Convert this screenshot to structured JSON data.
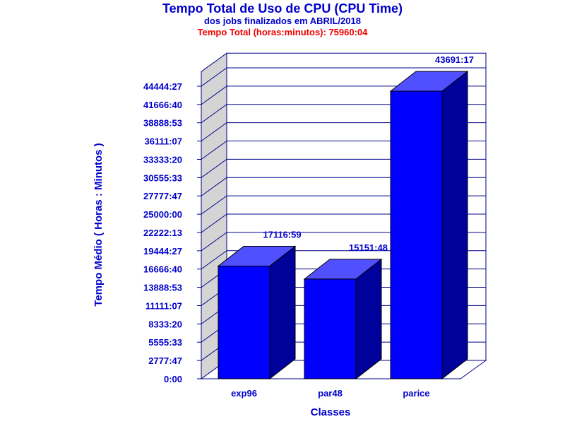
{
  "chart_data": {
    "type": "bar",
    "title": "Tempo Total de Uso de CPU (CPU Time)",
    "subtitle": "dos jobs finalizados em ABRIL/2018",
    "total_label": "Tempo Total (horas:minutos): 75960:04",
    "xlabel": "Classes",
    "ylabel": "Tempo Médio ( Horas : Minutos )",
    "categories": [
      "exp96",
      "par48",
      "parice"
    ],
    "values": [
      17116.98,
      15151.8,
      43691.28
    ],
    "value_labels": [
      "17116:59",
      "15151:48",
      "43691:17"
    ],
    "ylim": [
      0,
      46666.67
    ],
    "yticks": [
      0,
      2777.78,
      5555.56,
      8333.33,
      11111.11,
      13888.89,
      16666.67,
      19444.44,
      22222.22,
      25000,
      27777.78,
      30555.56,
      33333.33,
      36111.11,
      38888.89,
      41666.67,
      44444.44
    ],
    "ytick_labels": [
      "0:00",
      "2777:47",
      "5555:33",
      "8333:20",
      "11111:07",
      "13888:53",
      "16666:40",
      "19444:27",
      "22222:13",
      "25000:00",
      "27777:47",
      "30555:33",
      "33333:20",
      "36111:07",
      "38888:53",
      "41666:40",
      "44444:27"
    ],
    "grid": true,
    "style": "3d",
    "colors": {
      "bar_front": "#0000ff",
      "bar_top": "#5050ff",
      "bar_side": "#00009a",
      "text": "#0000cc",
      "total": "#ee0000",
      "wall": "#d4d4d4",
      "grid": "#00008b"
    }
  }
}
